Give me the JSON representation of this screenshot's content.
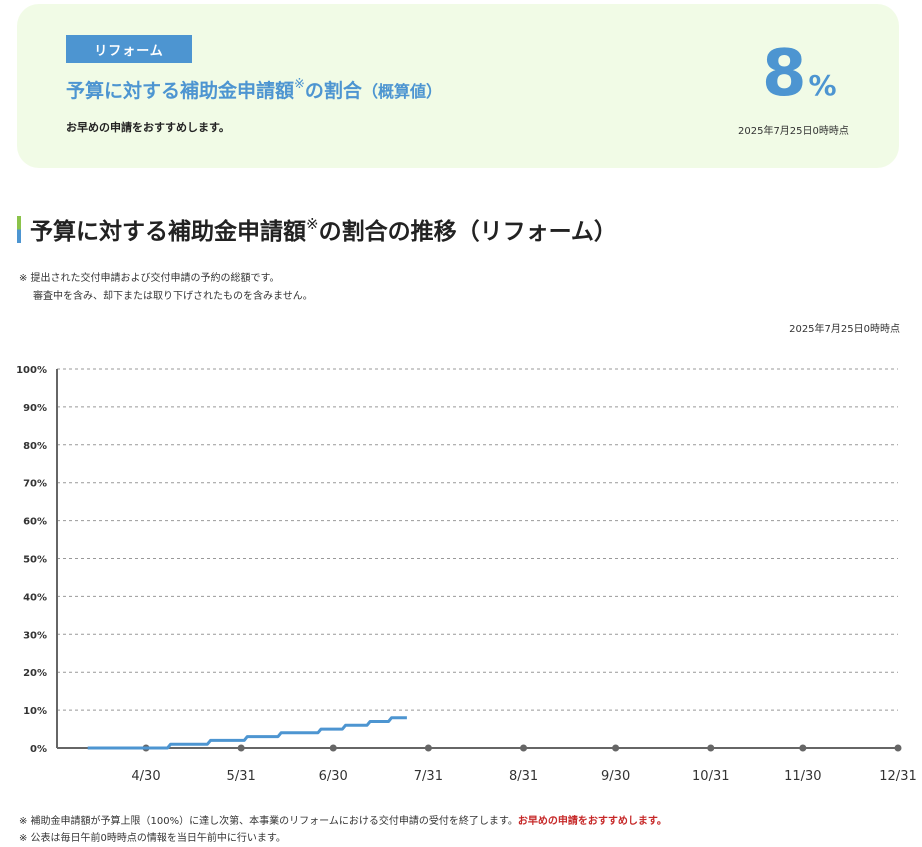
{
  "summary": {
    "badge": "リフォーム",
    "title_main": "予算に対する補助金申請額",
    "title_mark": "※",
    "title_tail": "の割合",
    "title_paren": "（概算値）",
    "subtitle": "お早めの申請をおすすめします。",
    "percent_value": "8",
    "percent_unit": "%",
    "timestamp": "2025年7月25日0時時点"
  },
  "section": {
    "heading_main": "予算に対する補助金申請額",
    "heading_mark": "※",
    "heading_tail": "の割合の推移（リフォーム）",
    "note_line1": "※ 提出された交付申請および交付申請の予約の総額です。",
    "note_line2": "審査中を含み、却下または取り下げされたものを含みません。",
    "timestamp": "2025年7月25日0時時点"
  },
  "footer": {
    "note1_prefix": "※ 補助金申請額が予算上限（100%）に達し次第、本事業のリフォームにおける交付申請の受付を終了します。",
    "note1_emphasis": "お早めの申請をおすすめします。",
    "note2": "※ 公表は毎日午前0時時点の情報を当日午前中に行います。"
  },
  "colors": {
    "accent": "#4d95d1",
    "card_bg": "#f1fbe6",
    "emphasis": "#c62828",
    "heading_bar_top": "#8bc34a"
  },
  "chart_data": {
    "type": "line",
    "y_ticks": [
      "0%",
      "10%",
      "20%",
      "30%",
      "40%",
      "50%",
      "60%",
      "70%",
      "80%",
      "90%",
      "100%"
    ],
    "x_ticks": [
      "4/30",
      "5/31",
      "6/30",
      "7/31",
      "8/31",
      "9/30",
      "10/31",
      "11/30",
      "12/31"
    ],
    "ylim": [
      0,
      100
    ],
    "xlim": [
      "2025-04-01",
      "2025-12-31"
    ],
    "grid": true,
    "series": [
      {
        "values": [
          {
            "x": "2025-04-11",
            "y": 0
          },
          {
            "x": "2025-05-07",
            "y": 0
          },
          {
            "x": "2025-05-08",
            "y": 1
          },
          {
            "x": "2025-05-20",
            "y": 1
          },
          {
            "x": "2025-05-21",
            "y": 2
          },
          {
            "x": "2025-06-01",
            "y": 2
          },
          {
            "x": "2025-06-02",
            "y": 3
          },
          {
            "x": "2025-06-12",
            "y": 3
          },
          {
            "x": "2025-06-13",
            "y": 4
          },
          {
            "x": "2025-06-25",
            "y": 4
          },
          {
            "x": "2025-06-26",
            "y": 5
          },
          {
            "x": "2025-07-03",
            "y": 5
          },
          {
            "x": "2025-07-04",
            "y": 6
          },
          {
            "x": "2025-07-11",
            "y": 6
          },
          {
            "x": "2025-07-12",
            "y": 7
          },
          {
            "x": "2025-07-18",
            "y": 7
          },
          {
            "x": "2025-07-19",
            "y": 8
          },
          {
            "x": "2025-07-24",
            "y": 8
          }
        ]
      }
    ]
  }
}
